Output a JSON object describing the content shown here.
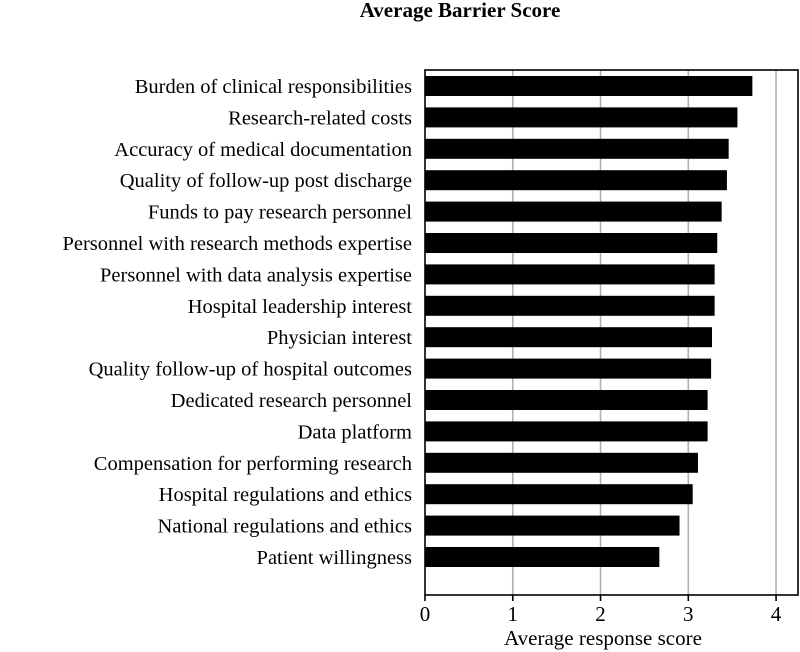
{
  "chart_data": {
    "type": "bar",
    "orientation": "horizontal",
    "title": "Average Barrier Score",
    "xlabel": "Average response score",
    "ylabel": "",
    "xlim": [
      0,
      4.25
    ],
    "xticks": [
      0,
      1,
      2,
      3,
      4
    ],
    "grid": "vertical",
    "bar_color": "#000000",
    "grid_color": "#b0b0b0",
    "categories": [
      "Burden of clinical responsibilities",
      "Research-related costs",
      "Accuracy of medical documentation",
      "Quality of follow-up post discharge",
      "Funds to pay research personnel",
      "Personnel with research methods expertise",
      "Personnel with data analysis expertise",
      "Hospital leadership interest",
      "Physician interest",
      "Quality follow-up of hospital outcomes",
      "Dedicated research personnel",
      "Data platform",
      "Compensation for performing research",
      "Hospital regulations and ethics",
      "National regulations and ethics",
      "Patient willingness"
    ],
    "values": [
      3.73,
      3.56,
      3.46,
      3.44,
      3.38,
      3.33,
      3.3,
      3.3,
      3.27,
      3.26,
      3.22,
      3.22,
      3.11,
      3.05,
      2.9,
      2.67
    ]
  }
}
